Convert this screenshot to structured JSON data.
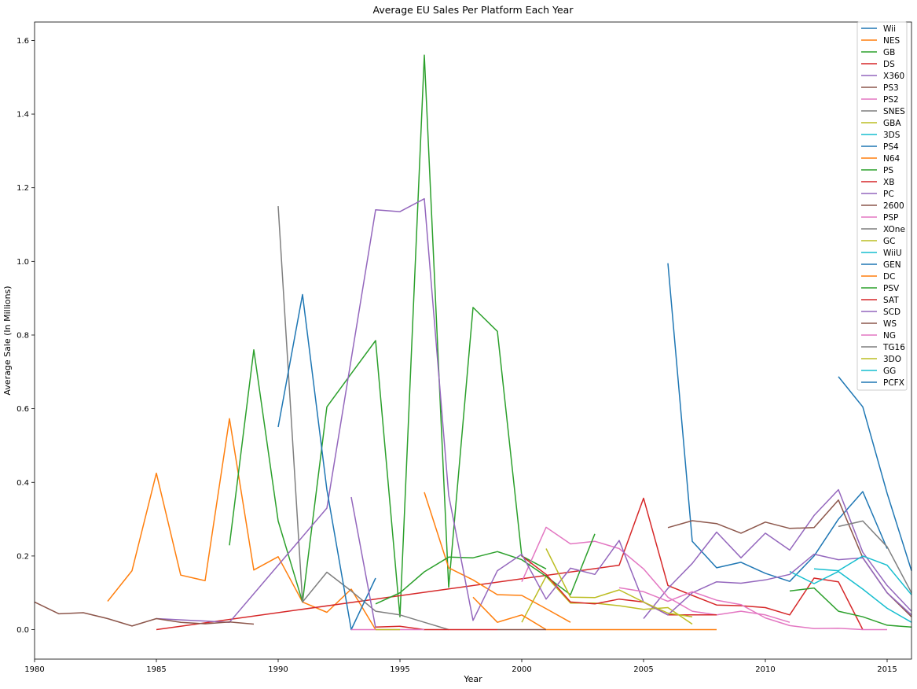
{
  "chart_data": {
    "type": "line",
    "title": "Average EU Sales Per Platform Each Year",
    "xlabel": "Year",
    "ylabel": "Average Sale (In Millions)",
    "xlim": [
      1980,
      2016
    ],
    "ylim": [
      -0.08,
      1.65
    ],
    "xticks": [
      1980,
      1985,
      1990,
      1995,
      2000,
      2005,
      2010,
      2015
    ],
    "yticks": [
      0.0,
      0.2,
      0.4,
      0.6,
      0.8,
      1.0,
      1.2,
      1.4,
      1.6
    ],
    "ytick_labels": [
      "0.0",
      "0.2",
      "0.4",
      "0.6",
      "0.8",
      "1.0",
      "1.2",
      "1.4",
      "1.6"
    ],
    "grid": false,
    "legend_position": "top-right",
    "series": [
      {
        "name": "Wii",
        "color": "#1f77b4",
        "points": [
          [
            2006,
            0.995
          ],
          [
            2007,
            0.24
          ],
          [
            2008,
            0.168
          ],
          [
            2009,
            0.183
          ],
          [
            2010,
            0.153
          ],
          [
            2011,
            0.131
          ],
          [
            2012,
            0.2
          ],
          [
            2013,
            0.3
          ],
          [
            2014,
            0.375
          ],
          [
            2015,
            0.22
          ]
        ]
      },
      {
        "name": "NES",
        "color": "#ff7f0e",
        "points": [
          [
            1983,
            0.077
          ],
          [
            1984,
            0.16
          ],
          [
            1985,
            0.425
          ],
          [
            1986,
            0.148
          ],
          [
            1987,
            0.133
          ],
          [
            1988,
            0.573
          ],
          [
            1989,
            0.162
          ],
          [
            1990,
            0.198
          ],
          [
            1991,
            0.075
          ],
          [
            1992,
            0.047
          ],
          [
            1993,
            0.11
          ],
          [
            1994,
            0.0
          ]
        ]
      },
      {
        "name": "GB",
        "color": "#2ca02c",
        "points": [
          [
            1988,
            0.229
          ],
          [
            1989,
            0.76
          ],
          [
            1990,
            0.295
          ],
          [
            1991,
            0.075
          ],
          [
            1992,
            0.605
          ],
          [
            1993,
            0.695
          ],
          [
            1994,
            0.785
          ],
          [
            1995,
            0.035
          ],
          [
            1996,
            1.56
          ],
          [
            1997,
            0.115
          ],
          [
            1998,
            0.875
          ],
          [
            1999,
            0.81
          ],
          [
            2000,
            0.2
          ],
          [
            2001,
            0.165
          ]
        ]
      },
      {
        "name": "DS",
        "color": "#d62728",
        "points": [
          [
            1985,
            0.0
          ],
          [
            2004,
            0.175
          ],
          [
            2005,
            0.357
          ],
          [
            2006,
            0.12
          ],
          [
            2007,
            0.093
          ],
          [
            2008,
            0.067
          ],
          [
            2009,
            0.065
          ],
          [
            2010,
            0.06
          ],
          [
            2011,
            0.04
          ],
          [
            2012,
            0.14
          ],
          [
            2013,
            0.13
          ],
          [
            2014,
            0.0
          ]
        ]
      },
      {
        "name": "X360",
        "color": "#9467bd",
        "points": [
          [
            2005,
            0.03
          ],
          [
            2006,
            0.112
          ],
          [
            2007,
            0.18
          ],
          [
            2008,
            0.265
          ],
          [
            2009,
            0.195
          ],
          [
            2010,
            0.262
          ],
          [
            2011,
            0.216
          ],
          [
            2012,
            0.31
          ],
          [
            2013,
            0.38
          ],
          [
            2014,
            0.21
          ],
          [
            2015,
            0.12
          ],
          [
            2016,
            0.05
          ]
        ]
      },
      {
        "name": "PS3",
        "color": "#8c564b",
        "points": [
          [
            2006,
            0.277
          ],
          [
            2007,
            0.296
          ],
          [
            2008,
            0.288
          ],
          [
            2009,
            0.262
          ],
          [
            2010,
            0.292
          ],
          [
            2011,
            0.275
          ],
          [
            2012,
            0.277
          ],
          [
            2013,
            0.352
          ],
          [
            2014,
            0.195
          ],
          [
            2015,
            0.1
          ],
          [
            2016,
            0.035
          ]
        ]
      },
      {
        "name": "PS2",
        "color": "#e377c2",
        "points": [
          [
            2000,
            0.13
          ],
          [
            2001,
            0.278
          ],
          [
            2002,
            0.233
          ],
          [
            2003,
            0.24
          ],
          [
            2004,
            0.22
          ],
          [
            2005,
            0.165
          ],
          [
            2006,
            0.088
          ],
          [
            2007,
            0.05
          ],
          [
            2008,
            0.04
          ],
          [
            2009,
            0.05
          ],
          [
            2010,
            0.04
          ],
          [
            2011,
            0.02
          ]
        ]
      },
      {
        "name": "SNES",
        "color": "#7f7f7f",
        "points": [
          [
            1990,
            1.15
          ],
          [
            1991,
            0.075
          ],
          [
            1992,
            0.156
          ],
          [
            1993,
            0.105
          ],
          [
            1994,
            0.05
          ],
          [
            1995,
            0.04
          ],
          [
            1996,
            0.02
          ],
          [
            1997,
            0.0
          ]
        ]
      },
      {
        "name": "GBA",
        "color": "#bcbd22",
        "points": [
          [
            2000,
            0.02
          ],
          [
            2001,
            0.145
          ],
          [
            2002,
            0.072
          ],
          [
            2003,
            0.072
          ],
          [
            2004,
            0.065
          ],
          [
            2005,
            0.055
          ],
          [
            2006,
            0.06
          ],
          [
            2007,
            0.015
          ]
        ]
      },
      {
        "name": "3DS",
        "color": "#17becf",
        "points": [
          [
            2011,
            0.158
          ],
          [
            2012,
            0.125
          ],
          [
            2013,
            0.158
          ],
          [
            2014,
            0.11
          ],
          [
            2015,
            0.058
          ],
          [
            2016,
            0.02
          ]
        ]
      },
      {
        "name": "PS4",
        "color": "#1f77b4",
        "points": [
          [
            2013,
            0.687
          ],
          [
            2014,
            0.605
          ],
          [
            2015,
            0.37
          ],
          [
            2016,
            0.16
          ]
        ]
      },
      {
        "name": "N64",
        "color": "#ff7f0e",
        "points": [
          [
            1996,
            0.373
          ],
          [
            1997,
            0.168
          ],
          [
            1998,
            0.135
          ],
          [
            1999,
            0.095
          ],
          [
            2000,
            0.093
          ],
          [
            2001,
            0.057
          ],
          [
            2002,
            0.02
          ]
        ]
      },
      {
        "name": "PS",
        "color": "#2ca02c",
        "points": [
          [
            1994,
            0.07
          ],
          [
            1995,
            0.1
          ],
          [
            1996,
            0.157
          ],
          [
            1997,
            0.197
          ],
          [
            1998,
            0.195
          ],
          [
            1999,
            0.212
          ],
          [
            2000,
            0.19
          ],
          [
            2001,
            0.145
          ],
          [
            2002,
            0.095
          ],
          [
            2003,
            0.26
          ]
        ]
      },
      {
        "name": "XB",
        "color": "#d62728",
        "points": [
          [
            2000,
            0.2
          ],
          [
            2001,
            0.15
          ],
          [
            2002,
            0.075
          ],
          [
            2003,
            0.07
          ],
          [
            2004,
            0.083
          ],
          [
            2005,
            0.075
          ],
          [
            2006,
            0.04
          ],
          [
            2007,
            0.04
          ],
          [
            2008,
            0.04
          ]
        ]
      },
      {
        "name": "PC",
        "color": "#9467bd",
        "points": [
          [
            1985,
            0.03
          ],
          [
            1988,
            0.02
          ],
          [
            1992,
            0.33
          ],
          [
            1994,
            1.14
          ],
          [
            1995,
            1.135
          ],
          [
            1996,
            1.17
          ],
          [
            1997,
            0.365
          ],
          [
            1998,
            0.025
          ],
          [
            1999,
            0.16
          ],
          [
            2000,
            0.205
          ],
          [
            2001,
            0.083
          ],
          [
            2002,
            0.167
          ],
          [
            2003,
            0.15
          ],
          [
            2004,
            0.242
          ],
          [
            2005,
            0.075
          ],
          [
            2006,
            0.04
          ],
          [
            2007,
            0.1
          ],
          [
            2008,
            0.13
          ],
          [
            2009,
            0.126
          ],
          [
            2010,
            0.135
          ],
          [
            2011,
            0.15
          ],
          [
            2012,
            0.205
          ],
          [
            2013,
            0.19
          ],
          [
            2014,
            0.195
          ],
          [
            2015,
            0.1
          ],
          [
            2016,
            0.04
          ]
        ]
      },
      {
        "name": "2600",
        "color": "#8c564b",
        "points": [
          [
            1980,
            0.075
          ],
          [
            1981,
            0.043
          ],
          [
            1982,
            0.046
          ],
          [
            1983,
            0.03
          ],
          [
            1984,
            0.01
          ],
          [
            1985,
            0.03
          ],
          [
            1986,
            0.02
          ],
          [
            1987,
            0.016
          ],
          [
            1988,
            0.021
          ],
          [
            1989,
            0.015
          ]
        ]
      },
      {
        "name": "PSP",
        "color": "#e377c2",
        "points": [
          [
            2004,
            0.114
          ],
          [
            2005,
            0.103
          ],
          [
            2006,
            0.077
          ],
          [
            2007,
            0.103
          ],
          [
            2008,
            0.08
          ],
          [
            2009,
            0.068
          ],
          [
            2010,
            0.032
          ],
          [
            2011,
            0.011
          ],
          [
            2012,
            0.003
          ],
          [
            2013,
            0.004
          ],
          [
            2014,
            0.0
          ],
          [
            2015,
            0.0
          ]
        ]
      },
      {
        "name": "XOne",
        "color": "#7f7f7f",
        "points": [
          [
            2013,
            0.28
          ],
          [
            2014,
            0.295
          ],
          [
            2015,
            0.225
          ],
          [
            2016,
            0.1
          ]
        ]
      },
      {
        "name": "GC",
        "color": "#bcbd22",
        "points": [
          [
            2001,
            0.22
          ],
          [
            2002,
            0.088
          ],
          [
            2003,
            0.087
          ],
          [
            2004,
            0.108
          ],
          [
            2005,
            0.075
          ],
          [
            2006,
            0.045
          ],
          [
            2007,
            0.035
          ]
        ]
      },
      {
        "name": "WiiU",
        "color": "#17becf",
        "points": [
          [
            2012,
            0.165
          ],
          [
            2013,
            0.16
          ],
          [
            2014,
            0.2
          ],
          [
            2015,
            0.175
          ],
          [
            2016,
            0.095
          ]
        ]
      },
      {
        "name": "GEN",
        "color": "#1f77b4",
        "points": [
          [
            1990,
            0.55
          ],
          [
            1991,
            0.91
          ],
          [
            1992,
            0.38
          ],
          [
            1993,
            0.0
          ],
          [
            1994,
            0.14
          ]
        ]
      },
      {
        "name": "DC",
        "color": "#ff7f0e",
        "points": [
          [
            1998,
            0.088
          ],
          [
            1999,
            0.02
          ],
          [
            2000,
            0.04
          ],
          [
            2001,
            0.0
          ],
          [
            2002,
            0.0
          ],
          [
            2008,
            0.0
          ]
        ]
      },
      {
        "name": "PSV",
        "color": "#2ca02c",
        "points": [
          [
            2011,
            0.105
          ],
          [
            2012,
            0.113
          ],
          [
            2013,
            0.05
          ],
          [
            2014,
            0.035
          ],
          [
            2015,
            0.012
          ],
          [
            2016,
            0.007
          ]
        ]
      },
      {
        "name": "SAT",
        "color": "#d62728",
        "points": [
          [
            1994,
            0.007
          ],
          [
            1995,
            0.009
          ],
          [
            1996,
            0.0
          ],
          [
            1997,
            0.0
          ],
          [
            1998,
            0.0
          ],
          [
            1999,
            0.0
          ]
        ]
      },
      {
        "name": "SCD",
        "color": "#9467bd",
        "points": [
          [
            1993,
            0.36
          ],
          [
            1994,
            0.005
          ]
        ]
      },
      {
        "name": "WS",
        "color": "#8c564b",
        "points": [
          [
            1999,
            0.0
          ],
          [
            2000,
            0.0
          ],
          [
            2001,
            0.0
          ]
        ]
      },
      {
        "name": "NG",
        "color": "#e377c2",
        "points": [
          [
            1993,
            0.0
          ],
          [
            1994,
            0.0
          ],
          [
            1995,
            0.0
          ],
          [
            1996,
            0.0
          ]
        ]
      },
      {
        "name": "TG16",
        "color": "#7f7f7f",
        "points": [
          [
            1995,
            0.0
          ]
        ]
      },
      {
        "name": "3DO",
        "color": "#bcbd22",
        "points": [
          [
            1994,
            0.0
          ],
          [
            1995,
            0.0
          ]
        ]
      },
      {
        "name": "GG",
        "color": "#17becf",
        "points": [
          [
            1992,
            0.0
          ]
        ]
      },
      {
        "name": "PCFX",
        "color": "#1f77b4",
        "points": [
          [
            1996,
            0.0
          ]
        ]
      }
    ]
  }
}
